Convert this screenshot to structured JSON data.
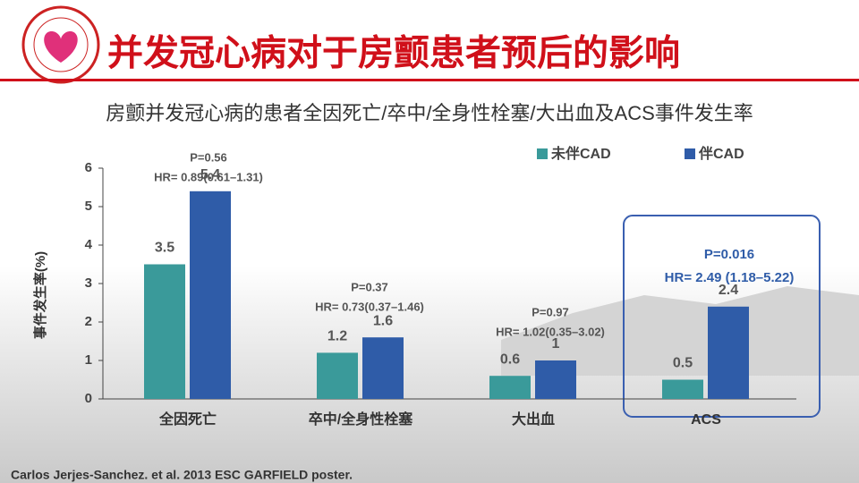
{
  "slide": {
    "title": "并发冠心病对于房颤患者预后的影响",
    "subtitle": "房颤并发冠心病的患者全因死亡/卒中/全身性栓塞/大出血及ACS事件发生率",
    "citation": "Carlos Jerjes-Sanchez. et al. 2013 ESC GARFIELD poster."
  },
  "chart_data": {
    "type": "bar",
    "y_label": "事件发生率(%)",
    "categories": [
      "全因死亡",
      "卒中/全身性栓塞",
      "大出血",
      "ACS"
    ],
    "series": [
      {
        "name": "未伴CAD",
        "color": "#3a9a9a",
        "values": [
          3.5,
          1.2,
          0.6,
          0.5
        ]
      },
      {
        "name": "伴CAD",
        "color": "#2f5ca8",
        "values": [
          5.4,
          1.6,
          1,
          2.4
        ]
      }
    ],
    "annotations": [
      {
        "p": "P=0.56",
        "hr": "HR= 0.89(0.61–1.31)"
      },
      {
        "p": "P=0.37",
        "hr": "HR= 0.73(0.37–1.46)"
      },
      {
        "p": "P=0.97",
        "hr": "HR= 1.02(0.35–3.02)"
      },
      {
        "p": "P=0.016",
        "hr": "HR= 2.49 (1.18–5.22)"
      }
    ],
    "ylim": [
      0,
      6
    ],
    "yticks": [
      0,
      1,
      2,
      3,
      4,
      5,
      6
    ],
    "grid": false,
    "legend": "top-right"
  }
}
